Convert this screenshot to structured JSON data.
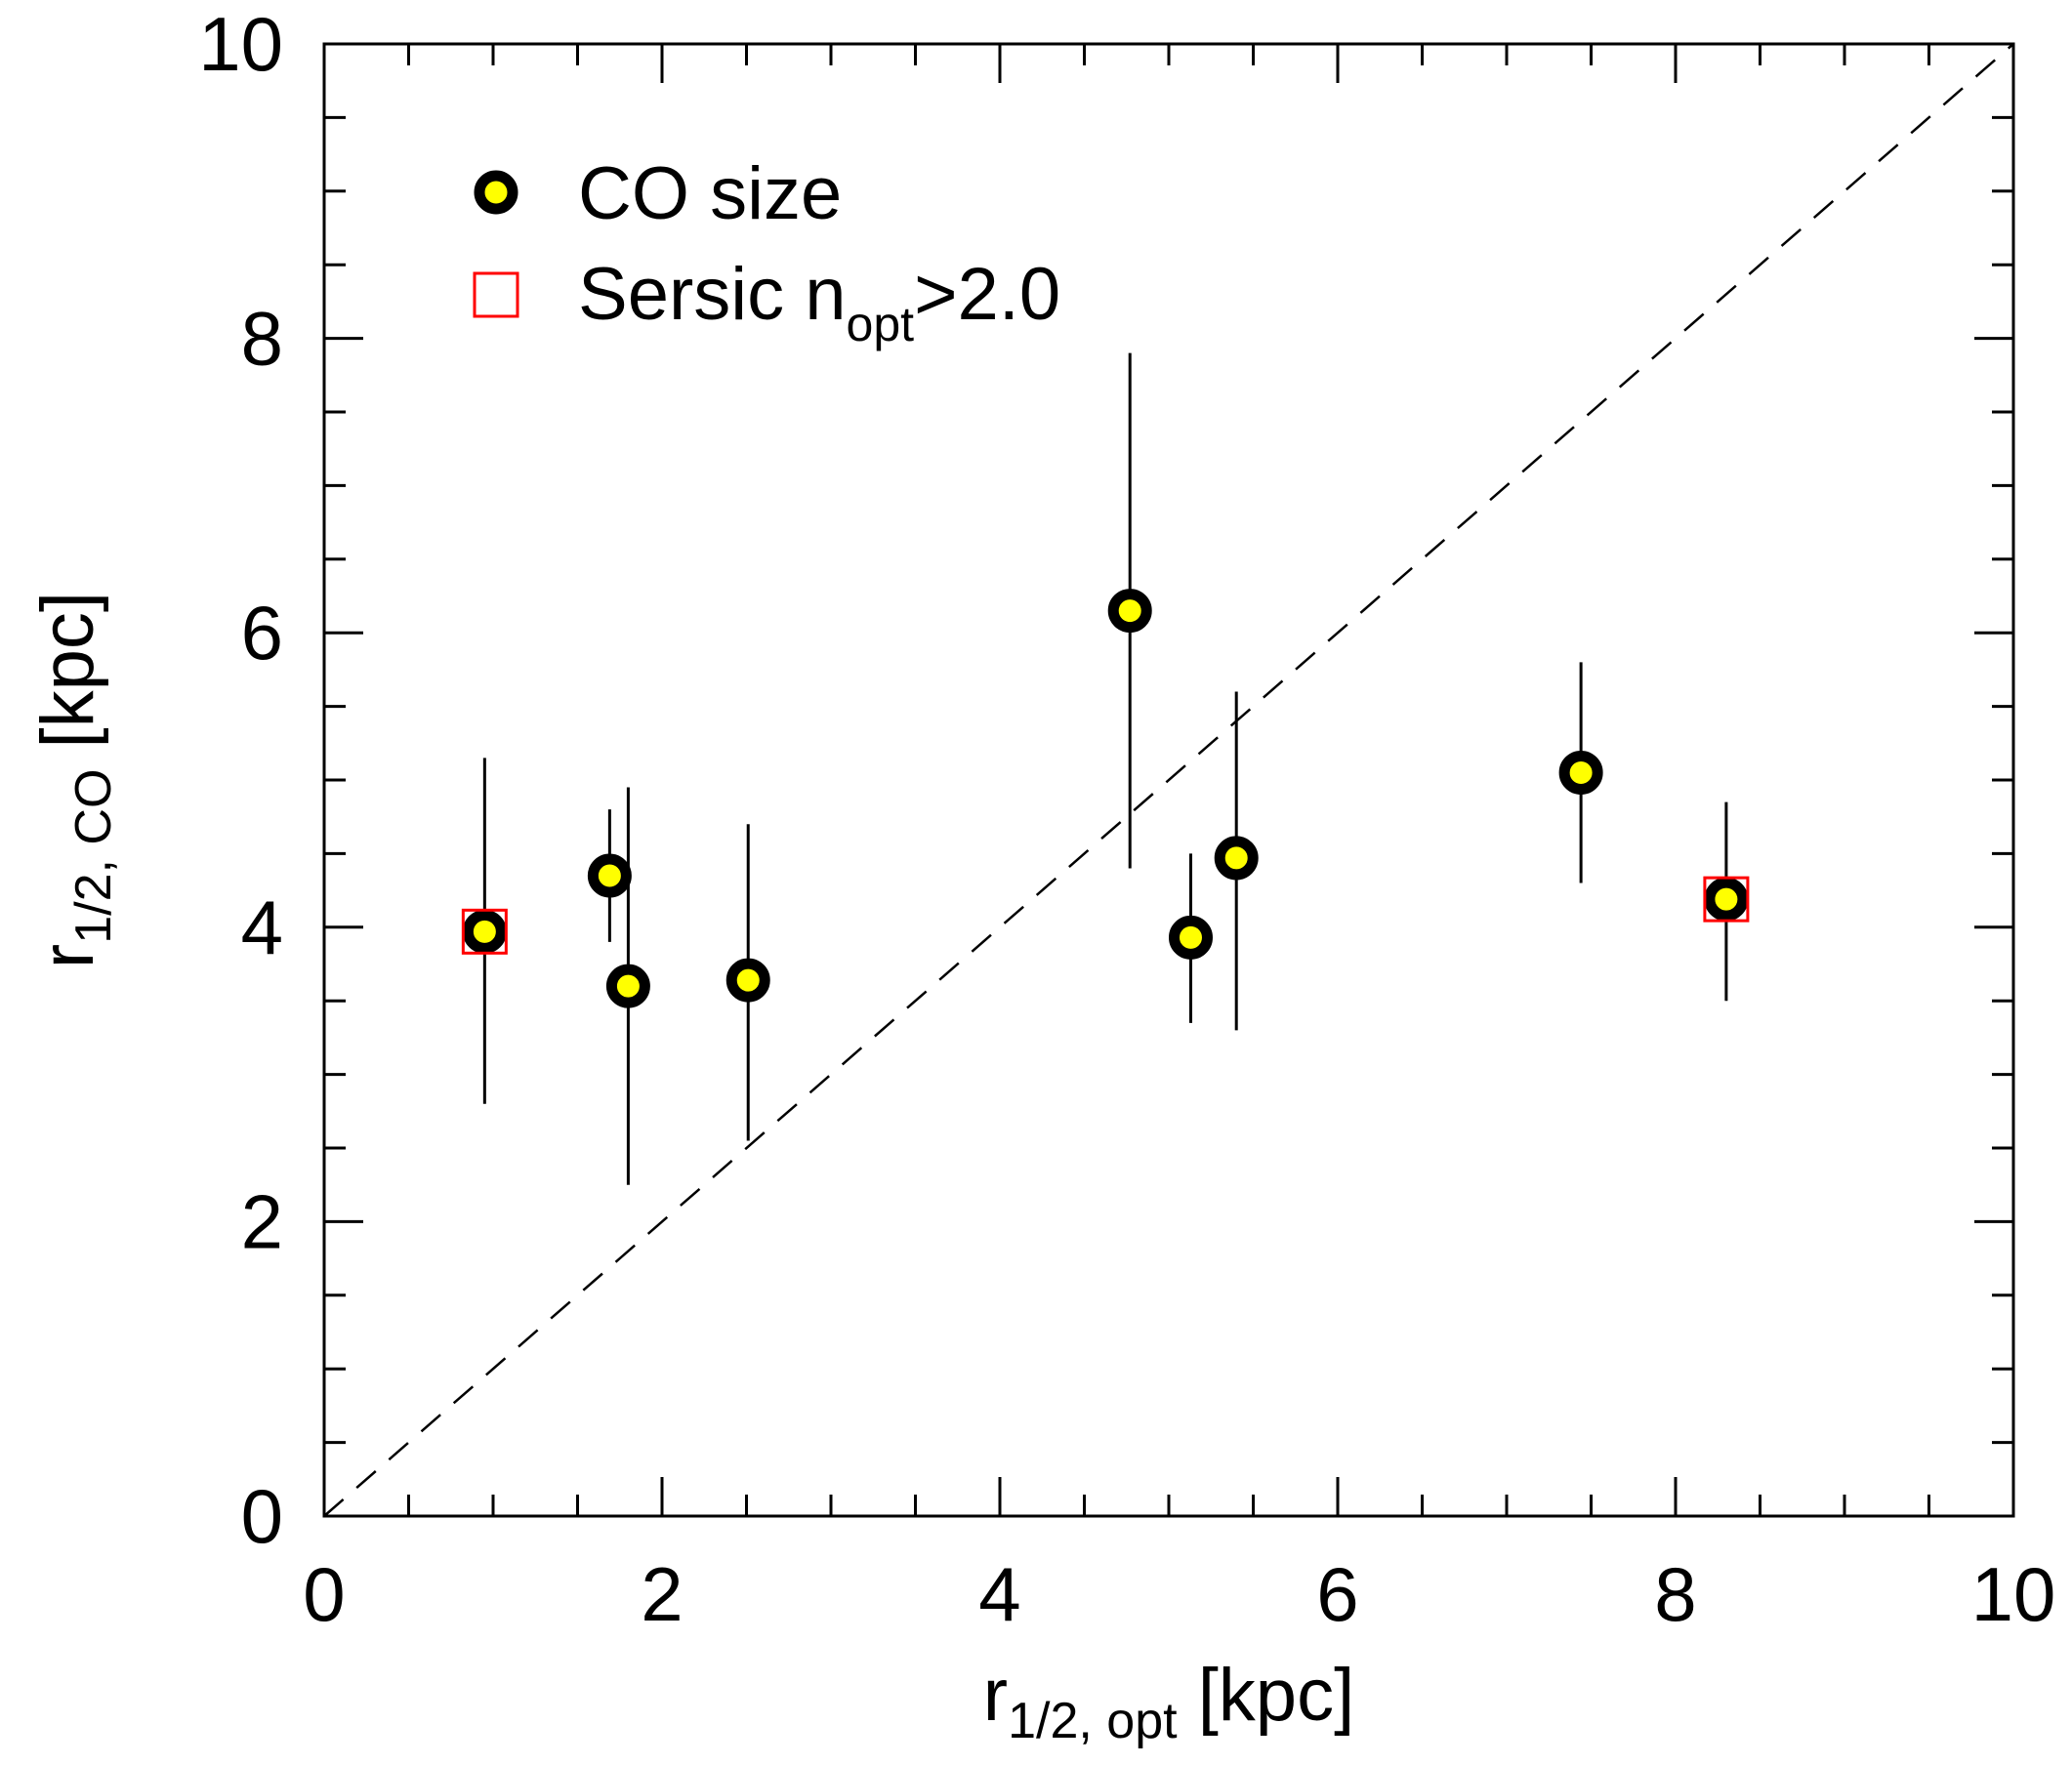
{
  "chart_data": {
    "type": "scatter",
    "xlim": [
      0,
      10
    ],
    "ylim": [
      0,
      10
    ],
    "x_major_ticks": [
      0,
      2,
      4,
      6,
      8,
      10
    ],
    "y_major_ticks": [
      0,
      2,
      4,
      6,
      8,
      10
    ],
    "x_tick_labels": [
      "0",
      "2",
      "4",
      "6",
      "8",
      "10"
    ],
    "y_tick_labels": [
      "0",
      "2",
      "4",
      "6",
      "8",
      "10"
    ],
    "x_minor_step": 0.5,
    "y_minor_step": 0.5,
    "xlabel": {
      "main": "r",
      "sub": "1/2, opt",
      "unit": " [kpc]"
    },
    "ylabel": {
      "main": "r",
      "sub": "1/2, CO",
      "unit": " [kpc]"
    },
    "grid": false,
    "reference_line": {
      "style": "dashed",
      "from": [
        0,
        0
      ],
      "to": [
        10,
        10
      ]
    },
    "legend": {
      "placement": "top-left",
      "entries": [
        {
          "label": "CO size",
          "label_sub": "",
          "label_after": "",
          "marker": "circle",
          "fill": "#ffff00",
          "edge": "#000000"
        },
        {
          "label": "Sersic n",
          "label_sub": "opt",
          "label_after": ">2.0",
          "marker": "square",
          "fill": "none",
          "edge": "#ff0000"
        }
      ]
    },
    "series": [
      {
        "name": "CO size",
        "marker": "circle",
        "fill": "#ffff00",
        "edge": "#000000",
        "points": [
          {
            "x": 0.95,
            "y": 3.97,
            "err_lo": 2.8,
            "err_hi": 5.15
          },
          {
            "x": 1.69,
            "y": 4.35,
            "err_lo": 3.9,
            "err_hi": 4.8
          },
          {
            "x": 1.8,
            "y": 3.6,
            "err_lo": 2.25,
            "err_hi": 4.95
          },
          {
            "x": 2.51,
            "y": 3.64,
            "err_lo": 2.55,
            "err_hi": 4.7
          },
          {
            "x": 4.77,
            "y": 6.15,
            "err_lo": 4.4,
            "err_hi": 7.9
          },
          {
            "x": 5.13,
            "y": 3.93,
            "err_lo": 3.35,
            "err_hi": 4.5
          },
          {
            "x": 5.4,
            "y": 4.47,
            "err_lo": 3.3,
            "err_hi": 5.6
          },
          {
            "x": 7.44,
            "y": 5.05,
            "err_lo": 4.3,
            "err_hi": 5.8
          },
          {
            "x": 8.3,
            "y": 4.19,
            "err_lo": 3.5,
            "err_hi": 4.85
          }
        ]
      },
      {
        "name": "Sersic n_opt>2.0",
        "marker": "square",
        "fill": "none",
        "edge": "#ff0000",
        "points": [
          {
            "x": 0.95,
            "y": 3.97
          },
          {
            "x": 8.3,
            "y": 4.19
          }
        ]
      }
    ]
  }
}
